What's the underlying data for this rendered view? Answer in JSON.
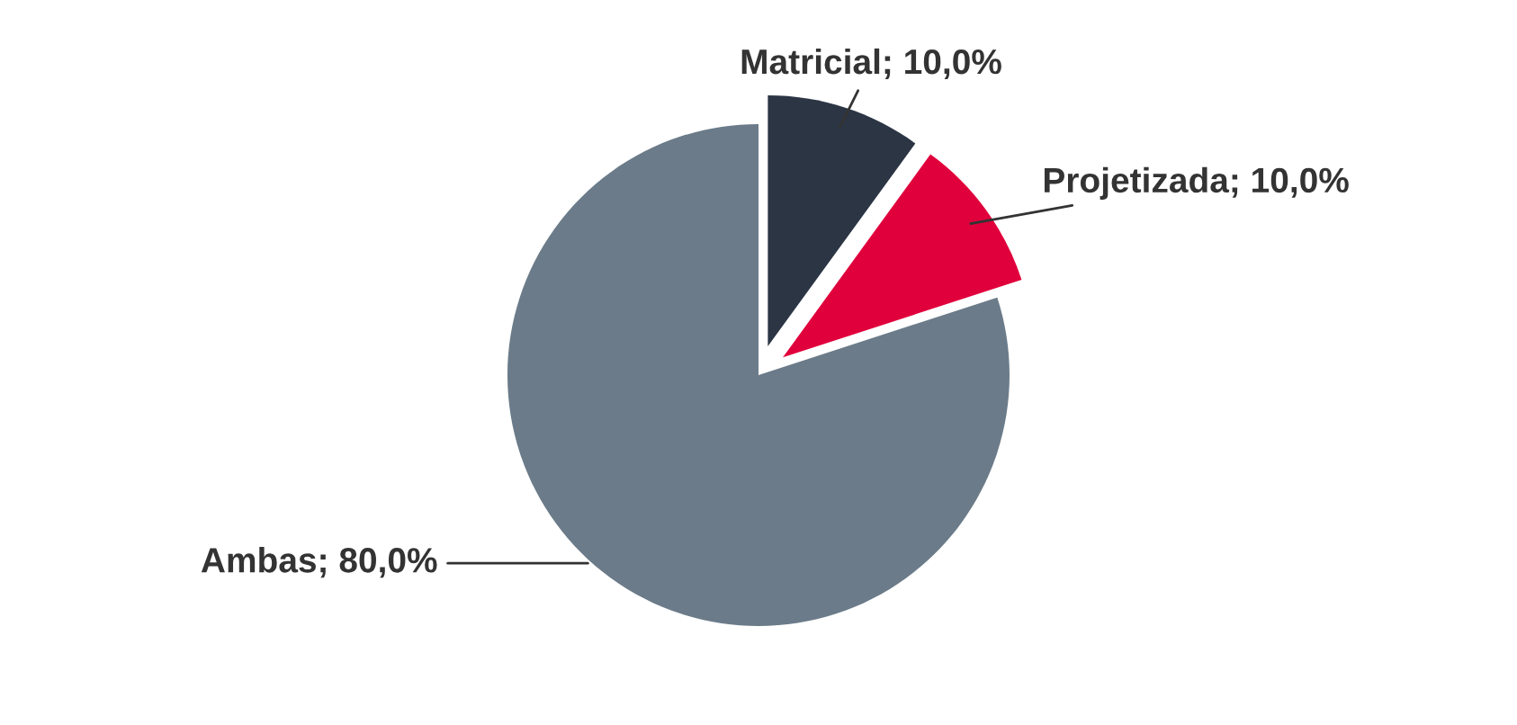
{
  "chart_data": {
    "type": "pie",
    "categories": [
      "Matricial",
      "Projetizada",
      "Ambas"
    ],
    "values": [
      10,
      10,
      80
    ],
    "colors": [
      "#2b3544",
      "#e0003c",
      "#6b7b89"
    ],
    "value_labels": [
      "10,0%",
      "10,0%",
      "80,0%"
    ],
    "legend": false
  }
}
